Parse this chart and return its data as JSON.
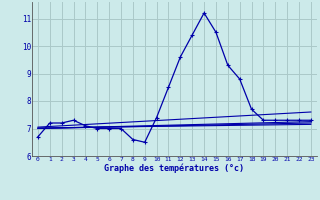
{
  "title": "Graphe des températures (°c)",
  "bg_color": "#cceaea",
  "grid_color": "#aac8c8",
  "line_color": "#0000aa",
  "xlim": [
    -0.5,
    23.5
  ],
  "ylim": [
    6.0,
    11.6
  ],
  "yticks": [
    6,
    7,
    8,
    9,
    10,
    11
  ],
  "xticks": [
    0,
    1,
    2,
    3,
    4,
    5,
    6,
    7,
    8,
    9,
    10,
    11,
    12,
    13,
    14,
    15,
    16,
    17,
    18,
    19,
    20,
    21,
    22,
    23
  ],
  "series": {
    "main": {
      "x": [
        0,
        1,
        2,
        3,
        4,
        5,
        6,
        7,
        8,
        9,
        10,
        11,
        12,
        13,
        14,
        15,
        16,
        17,
        18,
        19,
        20,
        21,
        22,
        23
      ],
      "y": [
        6.7,
        7.2,
        7.2,
        7.3,
        7.1,
        7.0,
        7.0,
        7.0,
        6.6,
        6.5,
        7.4,
        8.5,
        9.6,
        10.4,
        11.2,
        10.5,
        9.3,
        8.8,
        7.7,
        7.3,
        7.3,
        7.3,
        7.3,
        7.3
      ]
    },
    "trend1": {
      "x": [
        0,
        23
      ],
      "y": [
        7.05,
        7.6
      ]
    },
    "trend2": {
      "x": [
        0,
        23
      ],
      "y": [
        7.0,
        7.25
      ]
    },
    "trend3": {
      "x": [
        0,
        23
      ],
      "y": [
        7.0,
        7.2
      ]
    },
    "trend4": {
      "x": [
        0,
        23
      ],
      "y": [
        7.02,
        7.15
      ]
    }
  }
}
